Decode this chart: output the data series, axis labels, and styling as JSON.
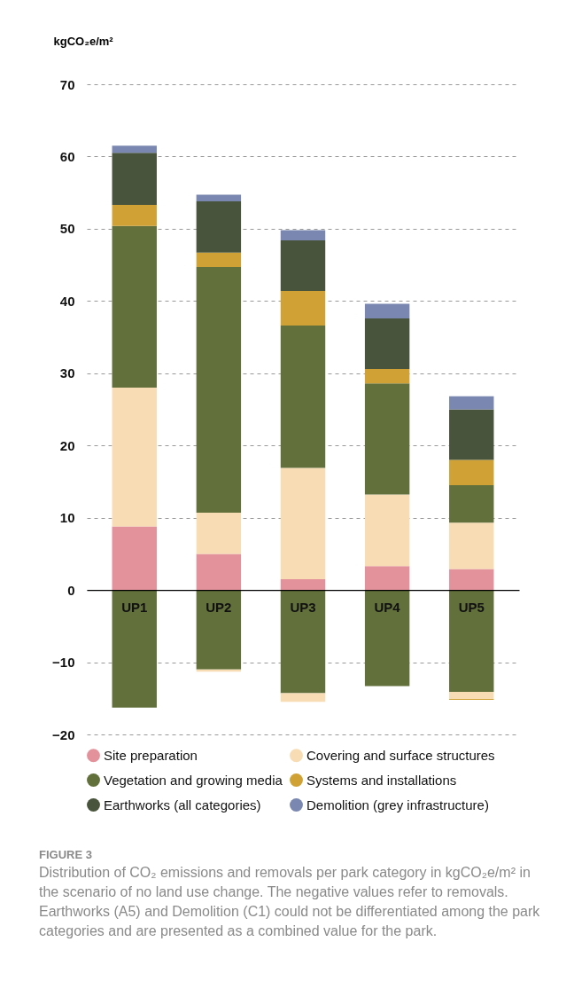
{
  "chart_data": {
    "type": "bar",
    "stacked": true,
    "ylabel": "kgCO₂e/m²",
    "categories": [
      "UP1",
      "UP2",
      "UP3",
      "UP4",
      "UP5"
    ],
    "series": [
      {
        "name": "Site preparation",
        "color": "#e3919a",
        "values": [
          8.8,
          5.0,
          1.5,
          3.3,
          2.9
        ]
      },
      {
        "name": "Covering and surface structures",
        "color": "#f8dcb4",
        "values": [
          19.2,
          5.7,
          15.4,
          9.9,
          6.4
        ]
      },
      {
        "name": "Vegetation and growing media",
        "color": "#62713c",
        "values": [
          22.4,
          34.0,
          19.7,
          15.4,
          5.2
        ]
      },
      {
        "name": "Systems and installations",
        "color": "#d0a235",
        "values": [
          2.9,
          2.0,
          4.8,
          2.0,
          3.5
        ]
      },
      {
        "name": "Earthworks (all categories)",
        "color": "#48543b",
        "values": [
          7.2,
          7.1,
          7.0,
          7.0,
          7.0
        ]
      },
      {
        "name": "Demolition (grey infrastructure)",
        "color": "#7a87b0",
        "values": [
          1.0,
          0.9,
          1.4,
          2.0,
          1.8
        ]
      },
      {
        "color": "#62713c",
        "values": [
          -16.3,
          -11.0,
          -14.3,
          -13.3,
          -14.1
        ]
      },
      {
        "color": "#f8dcb4",
        "values": [
          null,
          -0.3,
          -1.2,
          null,
          -1.0
        ]
      },
      {
        "color": "#d0a235",
        "values": [
          null,
          null,
          null,
          null,
          -0.1
        ]
      }
    ],
    "ylim": [
      -20,
      70
    ],
    "yticks": [
      -20,
      -10,
      0,
      10,
      20,
      30,
      40,
      50,
      60,
      70
    ],
    "grid": "y",
    "legend": "bottom",
    "annotations": [
      "FIGURE 3",
      "Distribution of CO₂ emissions and removals per park category in kgCO₂e/m² in the scenario of no land use change. The negative values refer to removals. Earthworks (A5) and Demolition (C1) could not be differentiated among the park categories and are presented as a combined value for the park."
    ]
  }
}
